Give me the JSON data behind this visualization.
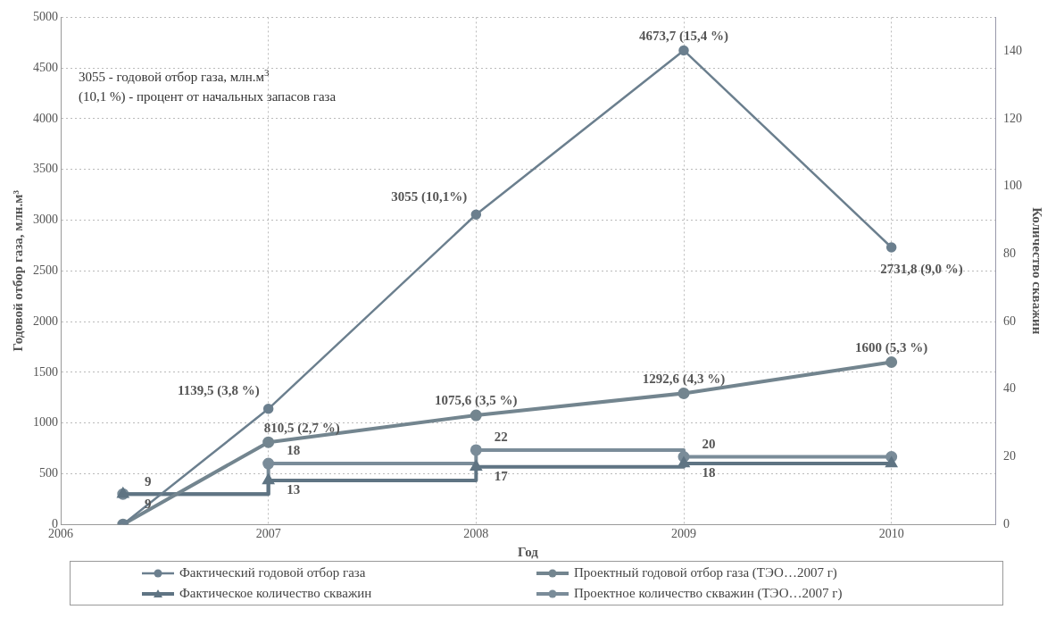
{
  "chart_data": {
    "type": "line",
    "xlabel": "Год",
    "ylabel": "Годовой отбор газа, млн.м³",
    "y2label": "Количество скважин",
    "x": [
      2006.3,
      2007,
      2008,
      2009,
      2010
    ],
    "xlim": [
      2006,
      2010.5
    ],
    "xticks": [
      2006,
      2007,
      2008,
      2009,
      2010
    ],
    "ylim": [
      0,
      5000
    ],
    "yticks": [
      0,
      500,
      1000,
      1500,
      2000,
      2500,
      3000,
      3500,
      4000,
      4500,
      5000
    ],
    "y2lim": [
      0,
      150
    ],
    "y2ticks": [
      0,
      20,
      40,
      60,
      80,
      100,
      120,
      140
    ],
    "grid": true,
    "legend": "bottom",
    "annotations": [
      "3055 - годовой отбор газа, млн.м$^{3}$",
      "(10,1 %) - процент от начальных запасов газа"
    ],
    "series": [
      {
        "name": "Фактический годовой отбор газа",
        "type": "line",
        "color": "#6b7f8e",
        "marker": "circle",
        "values": [
          0,
          1139.5,
          3055,
          4673.7,
          2731.8
        ],
        "value_labels": [
          null,
          "1139,5 (3,8 %)",
          "3055 (10,1%)",
          "4673,7 (15,4 %)",
          "2731,8 (9,0 %)"
        ]
      },
      {
        "name": "Проектный годовой отбор газа (ТЭО…2007 г)",
        "type": "line",
        "color": "#73858f",
        "marker": "circle",
        "values": [
          0,
          810.5,
          1075.6,
          1292.6,
          1600
        ],
        "value_labels": [
          null,
          "810,5 (2,7 %)",
          "1075,6 (3,5 %)",
          "1292,6 (4,3 %)",
          "1600 (5,3 %)"
        ]
      },
      {
        "name": "Фактическое количество скважин",
        "type": "step",
        "axis": "y2",
        "color": "#5f7483",
        "marker": "triangle",
        "values": [
          9,
          13,
          17,
          18,
          18
        ],
        "value_labels": [
          "9",
          "13",
          "17",
          "18",
          null
        ]
      },
      {
        "name": "Проектное количество скважин (ТЭО…2007 г)",
        "type": "step",
        "axis": "y2",
        "color": "#7a8c99",
        "marker": "circle",
        "values": [
          9,
          18,
          22,
          20,
          20
        ],
        "value_labels": [
          "9",
          "18",
          "22",
          "20",
          null
        ]
      }
    ]
  }
}
